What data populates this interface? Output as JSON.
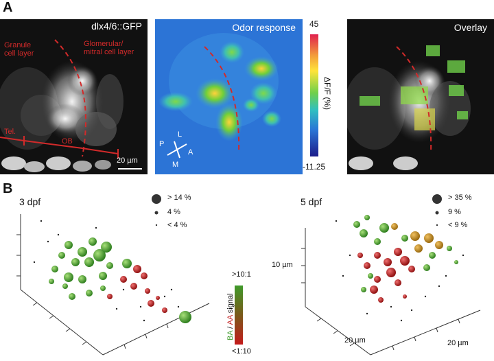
{
  "panel_a": {
    "letter": "A",
    "image1": {
      "title": "dlx4/6::GFP",
      "granule": [
        "Granule",
        "cell layer"
      ],
      "glomerular": [
        "Glomerular/",
        "mitral cell layer"
      ],
      "tel": "Tel.",
      "ob": "OB",
      "scalebar": "20 µm"
    },
    "image2": {
      "title": "Odor response",
      "compass": {
        "p": "P",
        "l": "L",
        "a": "A",
        "m": "M"
      }
    },
    "colorbar": {
      "max": "45",
      "min": "-11.25",
      "label": "ΔF/F (%)"
    },
    "image3": {
      "title": "Overlay"
    }
  },
  "panel_b": {
    "letter": "B",
    "left": {
      "title": "3 dpf",
      "legend": [
        "> 14 %",
        "4 %",
        "< 4 %"
      ]
    },
    "right": {
      "title": "5 dpf",
      "legend": [
        "> 35 %",
        "9 %",
        "< 9 %"
      ],
      "axis_z": "10 µm",
      "axis_x1": "20 µm",
      "axis_x2": "20 µm"
    },
    "colorbar": {
      "top": ">10:1",
      "bottom": "<1:10",
      "label_ba": "BA",
      "label_sep": " / ",
      "label_aa": "AA",
      "label_signal": " signal"
    }
  },
  "colors": {
    "ba": "#3f9a2a",
    "aa": "#c41a1a",
    "mixed": "#c08a1e",
    "red_line": "#d22a2a"
  }
}
